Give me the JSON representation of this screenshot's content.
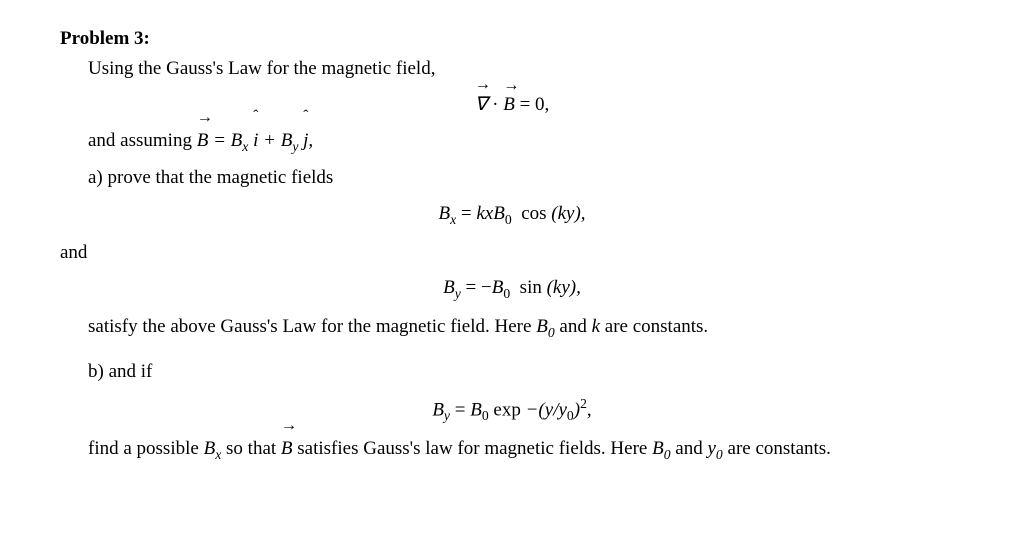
{
  "typography": {
    "font_family": "Times New Roman",
    "body_fontsize_pt": 14,
    "title_fontsize_pt": 14,
    "text_color": "#000000",
    "background_color": "#ffffff"
  },
  "problem_label": "Problem 3:",
  "intro": "Using the Gauss's Law for the magnetic field,",
  "equations": {
    "gauss": "∇⃗ · B⃗ = 0,",
    "B_assume_prefix": "and assuming ",
    "B_assume_math": "B⃗ = B_x î + B_y ĵ,",
    "part_a": "a) prove that the magnetic fields",
    "Bx": "B_x = kxB₀ cos (ky),",
    "and_word": "and",
    "By": "B_y = −B₀ sin (ky),",
    "satisfy_prefix": "satisfy the above Gauss's Law for the magnetic field. Here ",
    "satisfy_math1": "B₀",
    "satisfy_mid": " and ",
    "satisfy_math2": "k",
    "satisfy_suffix": " are constants.",
    "part_b": "b) and if",
    "By_exp": "B_y = B₀ exp −(y/y₀)²,",
    "find_prefix": "find a possible ",
    "find_math1": "B_x",
    "find_mid1": " so that ",
    "find_math2": "B⃗",
    "find_mid2": " satisfies Gauss's law for magnetic fields. Here ",
    "find_math3": "B₀",
    "find_mid3": " and ",
    "find_math4": "y₀",
    "find_suffix": " are constants."
  }
}
